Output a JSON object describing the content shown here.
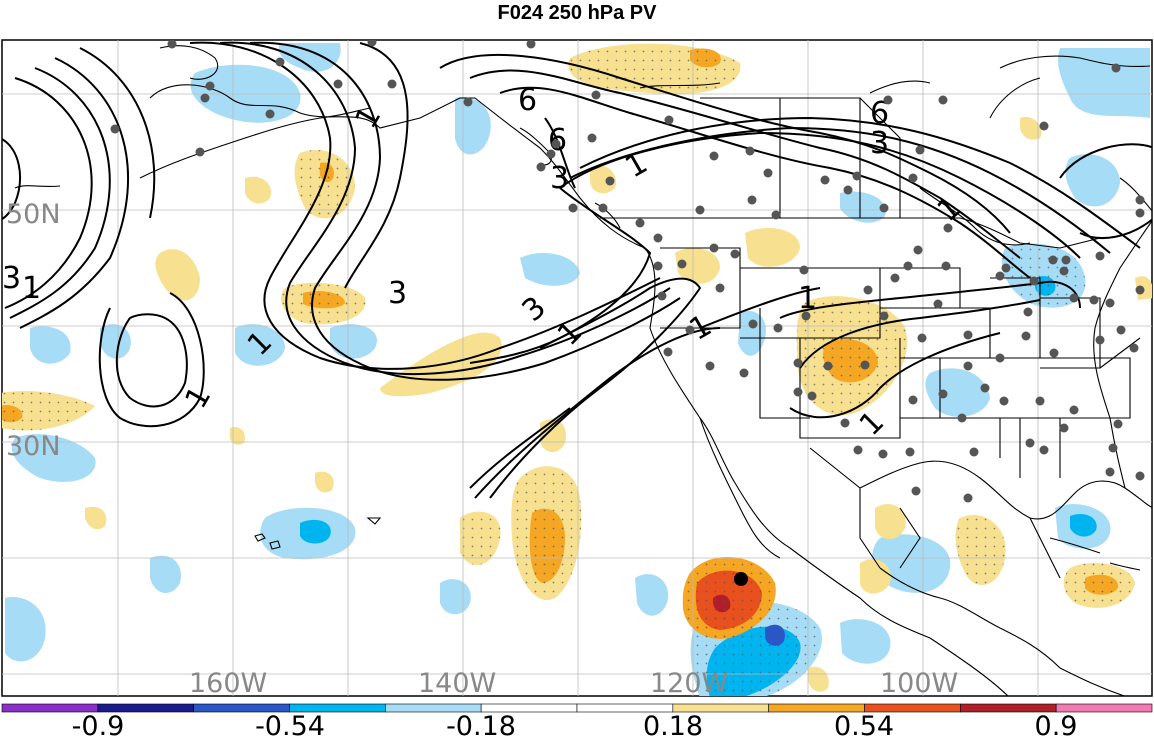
{
  "title": "F024 250 hPa PV",
  "map": {
    "lon_labels": [
      "160W",
      "140W",
      "120W",
      "100W"
    ],
    "lat_labels": [
      "50N",
      "30N"
    ],
    "contour_labels": [
      "3",
      "1",
      "1",
      "1",
      "3",
      "1",
      "6",
      "6",
      "3",
      "1",
      "3",
      "1",
      "6",
      "3",
      "1",
      "1",
      "1",
      "1"
    ]
  },
  "colorbar": {
    "colors": [
      "#8b2fc9",
      "#1a1a8c",
      "#2a57c7",
      "#00b4f0",
      "#a6dcf5",
      "#ffffff",
      "#ffffff",
      "#f7e08f",
      "#f5a623",
      "#e8501e",
      "#b01e2a",
      "#f27ab0"
    ],
    "tick_labels": [
      "-0.9",
      "-0.54",
      "-0.18",
      "0.18",
      "0.54",
      "0.9"
    ]
  }
}
